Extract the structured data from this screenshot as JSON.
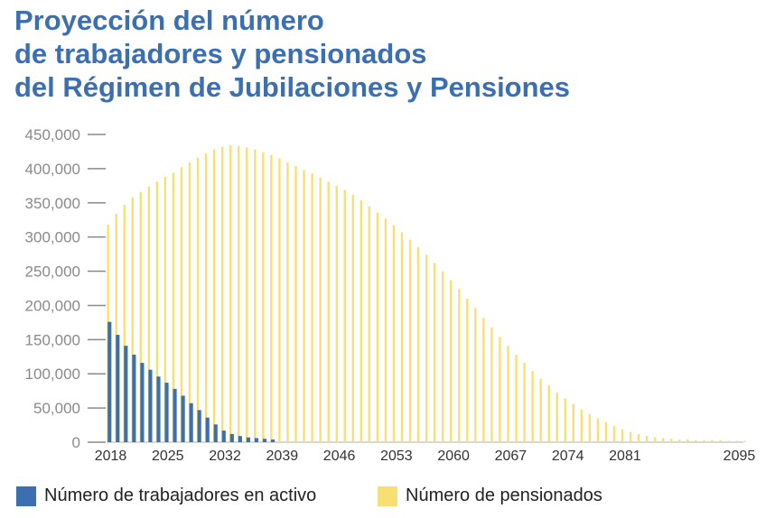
{
  "title_lines": [
    "Proyección del número",
    "de trabajadores y pensionados",
    "del Régimen de Jubilaciones y Pensiones"
  ],
  "colors": {
    "title": "#3b6fb0",
    "activos": "#3b6fb0",
    "pensionados": "#f8df73"
  },
  "chart_data": {
    "type": "bar",
    "title": "Proyección del número de trabajadores y pensionados del Régimen de Jubilaciones y Pensiones",
    "xlabel": "",
    "ylabel": "",
    "ylim": [
      0,
      450000
    ],
    "y_ticks": [
      0,
      50000,
      100000,
      150000,
      200000,
      250000,
      300000,
      350000,
      400000,
      450000
    ],
    "y_tick_labels": [
      "0",
      "50,000",
      "100,000",
      "150,000",
      "200,000",
      "250,000",
      "300,000",
      "350,000",
      "400,000",
      "450,000"
    ],
    "x_tick_labels": [
      "2018",
      "2025",
      "2032",
      "2039",
      "2046",
      "2053",
      "2060",
      "2067",
      "2074",
      "2081",
      "2095"
    ],
    "x_start": 2018,
    "x_end": 2096,
    "legend_position": "bottom",
    "series": [
      {
        "name": "Número de trabajadores en activo",
        "color": "#3b6fb0",
        "values": [
          176000,
          157000,
          141000,
          128000,
          116000,
          106000,
          96000,
          87000,
          78000,
          68000,
          57000,
          47000,
          36000,
          26000,
          17000,
          12000,
          9000,
          7000,
          6000,
          5000,
          4000
        ]
      },
      {
        "name": "Número de pensionados",
        "color": "#f8df73",
        "values": [
          318000,
          334000,
          347000,
          358000,
          366000,
          374000,
          381000,
          388000,
          394000,
          402000,
          409000,
          416000,
          422000,
          428000,
          432000,
          434000,
          433000,
          431000,
          428000,
          424000,
          420000,
          415000,
          409000,
          404000,
          398000,
          393000,
          387000,
          381000,
          375000,
          369000,
          362000,
          354000,
          345000,
          336000,
          327000,
          317000,
          307000,
          296000,
          285000,
          274000,
          262000,
          250000,
          237000,
          224000,
          210000,
          196000,
          182000,
          168000,
          154000,
          141000,
          128000,
          116000,
          104000,
          93000,
          83000,
          73000,
          64000,
          56000,
          48000,
          41000,
          35000,
          29000,
          24000,
          19000,
          15000,
          12000,
          9000,
          7000,
          6000,
          5000,
          4000,
          4000,
          3000,
          3000,
          3000,
          3000,
          2000,
          2000,
          2000
        ]
      }
    ]
  }
}
